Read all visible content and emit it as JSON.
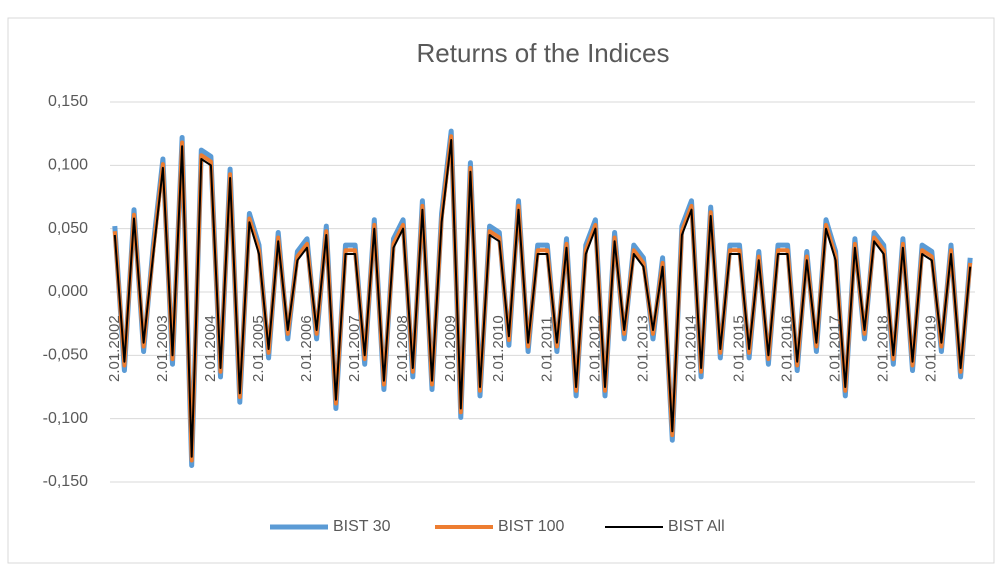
{
  "chart_data": {
    "type": "line",
    "title": "Returns of the Indices",
    "categories": [
      "2.01.2002",
      null,
      null,
      null,
      null,
      "2.01.2003",
      null,
      null,
      null,
      null,
      "2.01.2004",
      null,
      null,
      null,
      null,
      "2.01.2005",
      null,
      null,
      null,
      null,
      "2.01.2006",
      null,
      null,
      null,
      null,
      "2.01.2007",
      null,
      null,
      null,
      null,
      "2.01.2008",
      null,
      null,
      null,
      null,
      "2.01.2009",
      null,
      null,
      null,
      null,
      "2.01.2010",
      null,
      null,
      null,
      null,
      "2.01.2011",
      null,
      null,
      null,
      null,
      "2.01.2012",
      null,
      null,
      null,
      null,
      "2.01.2013",
      null,
      null,
      null,
      null,
      "2.01.2014",
      null,
      null,
      null,
      null,
      "2.01.2015",
      null,
      null,
      null,
      null,
      "2.01.2016",
      null,
      null,
      null,
      null,
      "2.01.2017",
      null,
      null,
      null,
      null,
      "2.01.2018",
      null,
      null,
      null,
      null,
      "2.01.2019",
      null,
      null,
      null,
      null
    ],
    "series": [
      {
        "name": "BIST 30",
        "color": "#5b9bd5",
        "width": 5,
        "values": [
          0.052,
          -0.062,
          0.065,
          -0.047,
          0.037,
          0.105,
          -0.057,
          0.122,
          -0.137,
          0.112,
          0.107,
          -0.067,
          0.097,
          -0.087,
          0.062,
          0.037,
          -0.052,
          0.047,
          -0.037,
          0.032,
          0.042,
          -0.037,
          0.052,
          -0.092,
          0.037,
          0.037,
          -0.057,
          0.057,
          -0.077,
          0.042,
          0.057,
          -0.067,
          0.072,
          -0.077,
          0.062,
          0.127,
          -0.099,
          0.102,
          -0.082,
          0.052,
          0.047,
          -0.042,
          0.072,
          -0.047,
          0.037,
          0.037,
          -0.047,
          0.042,
          -0.082,
          0.037,
          0.057,
          -0.082,
          0.047,
          -0.037,
          0.037,
          0.027,
          -0.037,
          0.027,
          -0.117,
          0.052,
          0.072,
          -0.067,
          0.067,
          -0.052,
          0.037,
          0.037,
          -0.052,
          0.032,
          -0.057,
          0.037,
          0.037,
          -0.062,
          0.032,
          -0.047,
          0.057,
          0.032,
          -0.082,
          0.042,
          -0.037,
          0.047,
          0.037,
          -0.057,
          0.042,
          -0.062,
          0.037,
          0.032,
          -0.047,
          0.037,
          -0.067,
          0.027
        ]
      },
      {
        "name": "BIST 100",
        "color": "#ed7d31",
        "width": 4,
        "values": [
          0.048,
          -0.058,
          0.061,
          -0.043,
          0.033,
          0.101,
          -0.053,
          0.118,
          -0.133,
          0.108,
          0.103,
          -0.063,
          0.093,
          -0.083,
          0.058,
          0.033,
          -0.048,
          0.043,
          -0.033,
          0.028,
          0.038,
          -0.033,
          0.048,
          -0.088,
          0.033,
          0.033,
          -0.053,
          0.053,
          -0.073,
          0.038,
          0.053,
          -0.063,
          0.068,
          -0.073,
          0.058,
          0.123,
          -0.095,
          0.098,
          -0.078,
          0.048,
          0.043,
          -0.038,
          0.068,
          -0.043,
          0.033,
          0.033,
          -0.043,
          0.038,
          -0.078,
          0.033,
          0.053,
          -0.078,
          0.043,
          -0.033,
          0.033,
          0.023,
          -0.033,
          0.023,
          -0.113,
          0.048,
          0.068,
          -0.063,
          0.063,
          -0.048,
          0.033,
          0.033,
          -0.048,
          0.028,
          -0.053,
          0.033,
          0.033,
          -0.058,
          0.028,
          -0.043,
          0.053,
          0.028,
          -0.078,
          0.038,
          -0.033,
          0.043,
          0.033,
          -0.053,
          0.038,
          -0.058,
          0.033,
          0.028,
          -0.043,
          0.033,
          -0.063,
          0.023
        ]
      },
      {
        "name": "BIST All",
        "color": "#000000",
        "width": 2,
        "values": [
          0.045,
          -0.055,
          0.058,
          -0.04,
          0.03,
          0.098,
          -0.05,
          0.115,
          -0.13,
          0.105,
          0.1,
          -0.06,
          0.09,
          -0.08,
          0.055,
          0.03,
          -0.045,
          0.04,
          -0.03,
          0.025,
          0.035,
          -0.03,
          0.045,
          -0.085,
          0.03,
          0.03,
          -0.05,
          0.05,
          -0.07,
          0.035,
          0.05,
          -0.06,
          0.065,
          -0.07,
          0.055,
          0.12,
          -0.092,
          0.095,
          -0.075,
          0.045,
          0.04,
          -0.035,
          0.065,
          -0.04,
          0.03,
          0.03,
          -0.04,
          0.035,
          -0.075,
          0.03,
          0.05,
          -0.075,
          0.04,
          -0.03,
          0.03,
          0.02,
          -0.03,
          0.02,
          -0.11,
          0.045,
          0.065,
          -0.06,
          0.06,
          -0.045,
          0.03,
          0.03,
          -0.045,
          0.025,
          -0.05,
          0.03,
          0.03,
          -0.055,
          0.025,
          -0.04,
          0.05,
          0.025,
          -0.075,
          0.035,
          -0.03,
          0.04,
          0.03,
          -0.05,
          0.035,
          -0.055,
          0.03,
          0.025,
          -0.04,
          0.03,
          -0.06,
          0.02
        ]
      }
    ],
    "ylim": [
      -0.15,
      0.15
    ],
    "yticks": [
      {
        "value": -0.15,
        "label": "-0,150"
      },
      {
        "value": -0.1,
        "label": "-0,100"
      },
      {
        "value": -0.05,
        "label": "-0,050"
      },
      {
        "value": 0,
        "label": "0,000"
      },
      {
        "value": 0.05,
        "label": "0,050"
      },
      {
        "value": 0.1,
        "label": "0,100"
      },
      {
        "value": 0.15,
        "label": "0,150"
      }
    ],
    "grid": true,
    "legend": "bottom"
  }
}
